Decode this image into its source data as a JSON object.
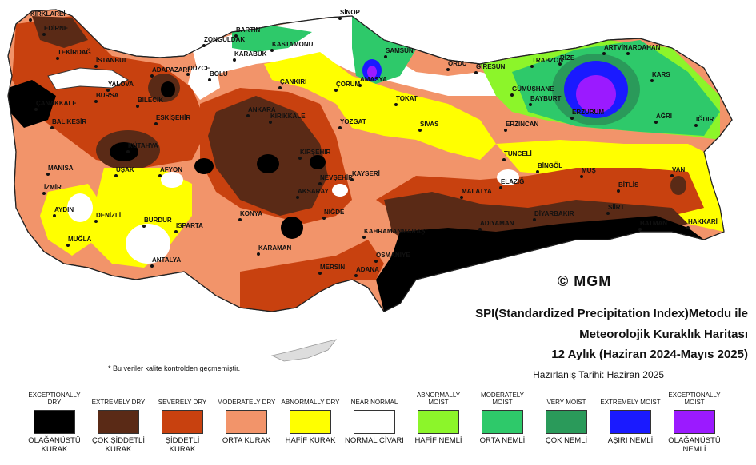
{
  "map": {
    "copyright": "© MGM",
    "note": "* Bu veriler kalite kontrolden geçmemiştir.",
    "cities": [
      "KIRKLAREİ",
      "EDİRNE",
      "TEKİRDAĞ",
      "İSTANBUL",
      "ÇANAKKALE",
      "BALIKESİR",
      "BURSA",
      "YALOVA",
      "BİLECİK",
      "ADAPAZARI",
      "DÜZCE",
      "BOLU",
      "ZONGULDAK",
      "BARTIN",
      "KARABÜK",
      "KASTAMONU",
      "SİNOP",
      "SAMSUN",
      "AMASYA",
      "ORDU",
      "GİRESUN",
      "TRABZON",
      "RİZE",
      "ARTVİN",
      "ARDAHAN",
      "KARS",
      "IĞDIR",
      "AĞRI",
      "ERZURUM",
      "BAYBURT",
      "GÜMÜŞHANE",
      "ERZİNCAN",
      "TOKAT",
      "SİVAS",
      "YOZGAT",
      "ÇORUM",
      "ÇANKIRI",
      "ANKARA",
      "KIRIKKALE",
      "KIRŞEHİR",
      "NEVŞEHİR",
      "KAYSERİ",
      "AKSARAY",
      "NİĞDE",
      "KONYA",
      "KARAMAN",
      "MERSİN",
      "ADANA",
      "OSMANİYE",
      "KAHRAMANMARAŞ",
      "MALATYA",
      "ELAZIĞ",
      "TUNCELİ",
      "BİNGÖL",
      "MUŞ",
      "BİTLİS",
      "VAN",
      "HAKKARİ",
      "SİİRT",
      "BATMAN",
      "DİYARBAKIR",
      "ADIYAMAN",
      "ESKİŞEHİR",
      "KÜTAHYA",
      "UŞAK",
      "AFYON",
      "MANİSA",
      "İZMİR",
      "AYDIN",
      "DENİZLİ",
      "MUĞLA",
      "BURDUR",
      "ISPARTA",
      "ANTALYA"
    ]
  },
  "title": {
    "line1": "SPI(Standardized Precipitation Index)Metodu ile",
    "line2": "Meteorolojik Kuraklık Haritası",
    "line3": "12 Aylık (Haziran 2024-Mayıs 2025)",
    "prepared": "Hazırlanış Tarihi: Haziran 2025"
  },
  "legend": [
    {
      "en": "EXCEPTIONALLY DRY",
      "tr": "OLAĞANÜSTÜ KURAK",
      "color": "#000000"
    },
    {
      "en": "EXTREMELY DRY",
      "tr": "ÇOK ŞİDDETLİ KURAK",
      "color": "#5a2a16"
    },
    {
      "en": "SEVERELY DRY",
      "tr": "ŞİDDETLİ KURAK",
      "color": "#c8410f"
    },
    {
      "en": "MODERATELY DRY",
      "tr": "ORTA KURAK",
      "color": "#f2946a"
    },
    {
      "en": "ABNORMALLY DRY",
      "tr": "HAFİF KURAK",
      "color": "#ffff00"
    },
    {
      "en": "NEAR NORMAL",
      "tr": "NORMAL CİVARI",
      "color": "#ffffff"
    },
    {
      "en": "ABNORMALLY MOIST",
      "tr": "HAFİF NEMLİ",
      "color": "#8cf52a"
    },
    {
      "en": "MODERATELY MOIST",
      "tr": "ORTA NEMLİ",
      "color": "#2ec96a"
    },
    {
      "en": "VERY MOIST",
      "tr": "ÇOK NEMLİ",
      "color": "#2a9a5a"
    },
    {
      "en": "EXTREMELY MOIST",
      "tr": "AŞIRI NEMLİ",
      "color": "#1a1aff"
    },
    {
      "en": "EXCEPTIONALLY MOIST",
      "tr": "OLAĞANÜSTÜ NEMLİ",
      "color": "#9b1aff"
    }
  ]
}
